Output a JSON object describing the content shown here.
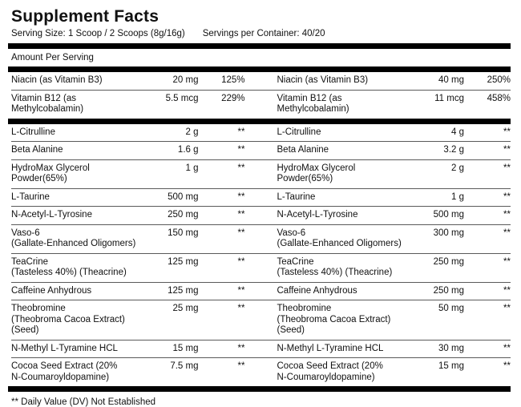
{
  "title": "Supplement Facts",
  "serving": {
    "size_label": "Serving Size: 1 Scoop / 2 Scoops (8g/16g)",
    "per_container_label": "Servings per Container: 40/20"
  },
  "amount_per_serving_label": "Amount Per Serving",
  "footnote": "** Daily Value (DV) Not Established",
  "colors": {
    "bar": "#000000",
    "separator": "#5a5a5a",
    "text": "#111111",
    "background": "#ffffff"
  },
  "table": {
    "vitamin_rows": [
      {
        "left": {
          "name": "Niacin (as Vitamin B3)",
          "amount": "20 mg",
          "dv": "125%"
        },
        "right": {
          "name": "Niacin (as Vitamin B3)",
          "amount": "40 mg",
          "dv": "250%"
        }
      },
      {
        "left": {
          "name": "Vitamin B12 (as Methylcobalamin)",
          "amount": "5.5 mcg",
          "dv": "229%"
        },
        "right": {
          "name": "Vitamin B12 (as Methylcobalamin)",
          "amount": "11 mcg",
          "dv": "458%"
        }
      }
    ],
    "ingredient_rows": [
      {
        "left": {
          "name": "L-Citrulline",
          "amount": "2 g",
          "dv": "**"
        },
        "right": {
          "name": "L-Citrulline",
          "amount": "4 g",
          "dv": "**"
        }
      },
      {
        "left": {
          "name": "Beta Alanine",
          "amount": "1.6 g",
          "dv": "**"
        },
        "right": {
          "name": "Beta Alanine",
          "amount": "3.2 g",
          "dv": "**"
        }
      },
      {
        "left": {
          "name": "HydroMax Glycerol Powder(65%)",
          "amount": "1 g",
          "dv": "**"
        },
        "right": {
          "name": "HydroMax Glycerol Powder(65%)",
          "amount": "2 g",
          "dv": "**"
        }
      },
      {
        "left": {
          "name": "L-Taurine",
          "amount": "500 mg",
          "dv": "**"
        },
        "right": {
          "name": "L-Taurine",
          "amount": "1 g",
          "dv": "**"
        }
      },
      {
        "left": {
          "name": "N-Acetyl-L-Tyrosine",
          "amount": "250 mg",
          "dv": "**"
        },
        "right": {
          "name": "N-Acetyl-L-Tyrosine",
          "amount": "500 mg",
          "dv": "**"
        }
      },
      {
        "left": {
          "name": "Vaso-6",
          "name2": "(Gallate-Enhanced Oligomers)",
          "amount": "150 mg",
          "dv": "**"
        },
        "right": {
          "name": "Vaso-6",
          "name2": "(Gallate-Enhanced Oligomers)",
          "amount": "300 mg",
          "dv": "**"
        }
      },
      {
        "left": {
          "name": "TeaCrine",
          "name2": "(Tasteless 40%) (Theacrine)",
          "amount": "125 mg",
          "dv": "**"
        },
        "right": {
          "name": "TeaCrine",
          "name2": "(Tasteless 40%) (Theacrine)",
          "amount": "250 mg",
          "dv": "**"
        }
      },
      {
        "left": {
          "name": "Caffeine Anhydrous",
          "amount": "125 mg",
          "dv": "**"
        },
        "right": {
          "name": "Caffeine Anhydrous",
          "amount": "250 mg",
          "dv": "**"
        }
      },
      {
        "left": {
          "name": "Theobromine",
          "name2": "(Theobroma Cacoa Extract) (Seed)",
          "amount": "25 mg",
          "dv": "**"
        },
        "right": {
          "name": "Theobromine",
          "name2": "(Theobroma Cacoa Extract) (Seed)",
          "amount": "50 mg",
          "dv": "**"
        }
      },
      {
        "left": {
          "name": "N-Methyl L-Tyramine HCL",
          "amount": "15 mg",
          "dv": "**"
        },
        "right": {
          "name": "N-Methyl L-Tyramine HCL",
          "amount": "30 mg",
          "dv": "**"
        }
      },
      {
        "left": {
          "name": "Cocoa Seed Extract (20%",
          "name2": "N-Coumaroyldopamine)",
          "amount": "7.5 mg",
          "dv": "**"
        },
        "right": {
          "name": "Cocoa Seed Extract (20%",
          "name2": "N-Coumaroyldopamine)",
          "amount": "15 mg",
          "dv": "**"
        }
      }
    ]
  }
}
